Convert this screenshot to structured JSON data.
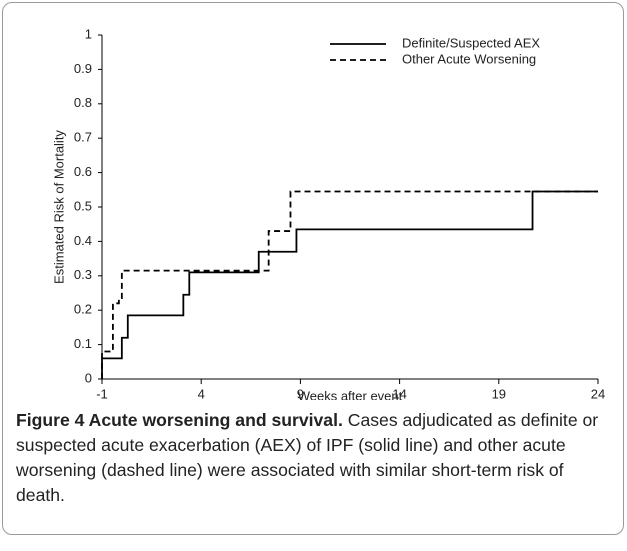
{
  "chart_data": {
    "type": "step-line",
    "xlabel": "Weeks after event",
    "ylabel": "Estimated Risk of Mortality",
    "xlim": [
      -1,
      24
    ],
    "xticks": [
      -1,
      4,
      9,
      14,
      19,
      24
    ],
    "ylim": [
      0,
      1
    ],
    "yticks": [
      0,
      0.1,
      0.2,
      0.3,
      0.4,
      0.5,
      0.6,
      0.7,
      0.8,
      0.9,
      1
    ],
    "grid": false,
    "legend": "upper right",
    "series": [
      {
        "name": "Definite/Suspected AEX",
        "color": "#000000",
        "dash": false,
        "x": [
          -1,
          -1,
          0,
          0,
          0.3,
          0.3,
          3.1,
          3.1,
          3.4,
          3.4,
          6.9,
          6.9,
          8.8,
          8.8,
          20.7,
          20.7,
          24
        ],
        "values": [
          0,
          0.06,
          0.06,
          0.12,
          0.12,
          0.185,
          0.185,
          0.245,
          0.245,
          0.31,
          0.31,
          0.37,
          0.37,
          0.435,
          0.435,
          0.545,
          0.545
        ]
      },
      {
        "name": "Other Acute Worsening",
        "color": "#000000",
        "dash": true,
        "x": [
          -1,
          -1,
          -0.45,
          -0.45,
          -0.15,
          -0.15,
          0,
          0,
          7.4,
          7.4,
          8.5,
          8.5,
          24
        ],
        "values": [
          0,
          0.08,
          0.08,
          0.22,
          0.22,
          0.235,
          0.235,
          0.315,
          0.315,
          0.43,
          0.43,
          0.545,
          0.545
        ]
      }
    ]
  },
  "caption": {
    "label": "Figure 4 Acute worsening and survival.",
    "text": "Cases adjudicated as definite or suspected acute exacerbation (AEX) of IPF (solid line) and other acute worsening (dashed line) were associated with similar short-term risk of death."
  }
}
